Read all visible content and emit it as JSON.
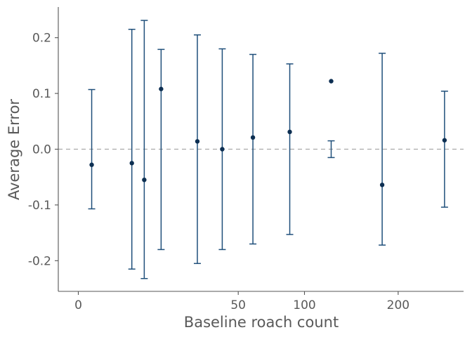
{
  "chart_data": {
    "type": "scatter",
    "title": "",
    "xlabel": "Baseline roach count",
    "ylabel": "Average Error",
    "x_scale": "sqrt",
    "xlim": [
      0,
      280
    ],
    "ylim": [
      -0.255,
      0.255
    ],
    "x_ticks": [
      0,
      50,
      100,
      200
    ],
    "x_tick_labels": [
      "0",
      "50",
      "100",
      "200"
    ],
    "y_ticks": [
      -0.2,
      -0.1,
      0.0,
      0.1,
      0.2
    ],
    "y_tick_labels": [
      "-0.2",
      "-0.1",
      "0.0",
      "0.1",
      "0.2"
    ],
    "reference_line": {
      "y": 0,
      "style": "dashed"
    },
    "grid": false,
    "legend": "none",
    "colors": {
      "points": "#0d2f52",
      "errorbars": "#1f4f7a",
      "reference": "#aaaaaa",
      "axis": "#555555",
      "text": "#595959"
    },
    "points": [
      {
        "x": 0.35,
        "y": -0.028,
        "low": -0.107,
        "high": 0.107
      },
      {
        "x": 5.6,
        "y": -0.025,
        "low": -0.215,
        "high": 0.215
      },
      {
        "x": 8.5,
        "y": -0.055,
        "low": -0.232,
        "high": 0.231
      },
      {
        "x": 13.4,
        "y": 0.108,
        "low": -0.18,
        "high": 0.179
      },
      {
        "x": 27.7,
        "y": 0.014,
        "low": -0.205,
        "high": 0.205
      },
      {
        "x": 40.5,
        "y": 0.0,
        "low": -0.18,
        "high": 0.18
      },
      {
        "x": 59.6,
        "y": 0.021,
        "low": -0.17,
        "high": 0.17
      },
      {
        "x": 87.4,
        "y": 0.031,
        "low": -0.153,
        "high": 0.153
      },
      {
        "x": 125.0,
        "y": 0.122,
        "low": -0.015,
        "high": 0.015
      },
      {
        "x": 180.5,
        "y": -0.064,
        "low": -0.172,
        "high": 0.172
      },
      {
        "x": 262.2,
        "y": 0.016,
        "low": -0.104,
        "high": 0.104
      }
    ]
  }
}
